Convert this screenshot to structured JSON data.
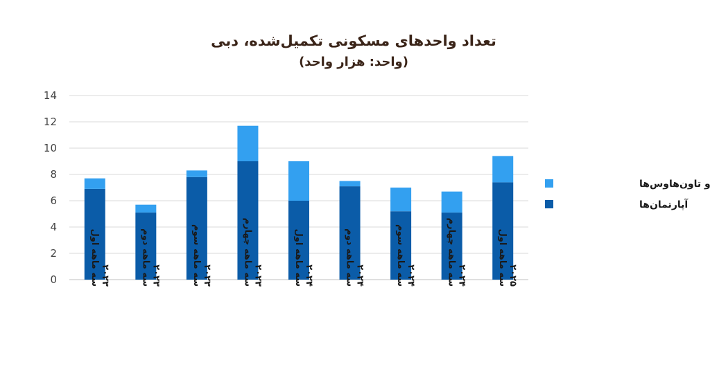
{
  "chart_data": {
    "type": "bar",
    "stacked": true,
    "title": "تعداد واحدهای مسکونی تکمیل‌شده، دبی",
    "subtitle": "(واحد: هزار واحد)",
    "categories": [
      [
        "سه ماهه اول",
        "۲۰۲۳"
      ],
      [
        "سه ماهه دوم",
        "۲۰۲۳"
      ],
      [
        "سه ماهه سوم",
        "۲۰۲۳"
      ],
      [
        "سه ماهه چهارم",
        "۲۰۲۳"
      ],
      [
        "سه ماهه اول",
        "۲۰۲۴"
      ],
      [
        "سه ماهه دوم",
        "۲۰۲۴"
      ],
      [
        "سه ماهه سوم",
        "۲۰۲۴"
      ],
      [
        "سه ماهه چهارم",
        "۲۰۲۴"
      ],
      [
        "سه ماهه اول",
        "۲۰۲۵"
      ]
    ],
    "series": [
      {
        "name": "آپارتمان‌ها",
        "color": "#0b5ca8",
        "values": [
          6.9,
          5.1,
          7.8,
          9.0,
          6.0,
          7.1,
          5.2,
          5.1,
          7.4
        ]
      },
      {
        "name": "ویلا و تاون‌هاوس‌ها",
        "color": "#33a0f0",
        "values": [
          0.8,
          0.6,
          0.5,
          2.7,
          3.0,
          0.4,
          1.8,
          1.6,
          2.0
        ]
      }
    ],
    "ylim": [
      0,
      14
    ],
    "yticks": [
      0,
      2,
      4,
      6,
      8,
      10,
      12,
      14
    ],
    "grid": true,
    "legend": "right"
  }
}
